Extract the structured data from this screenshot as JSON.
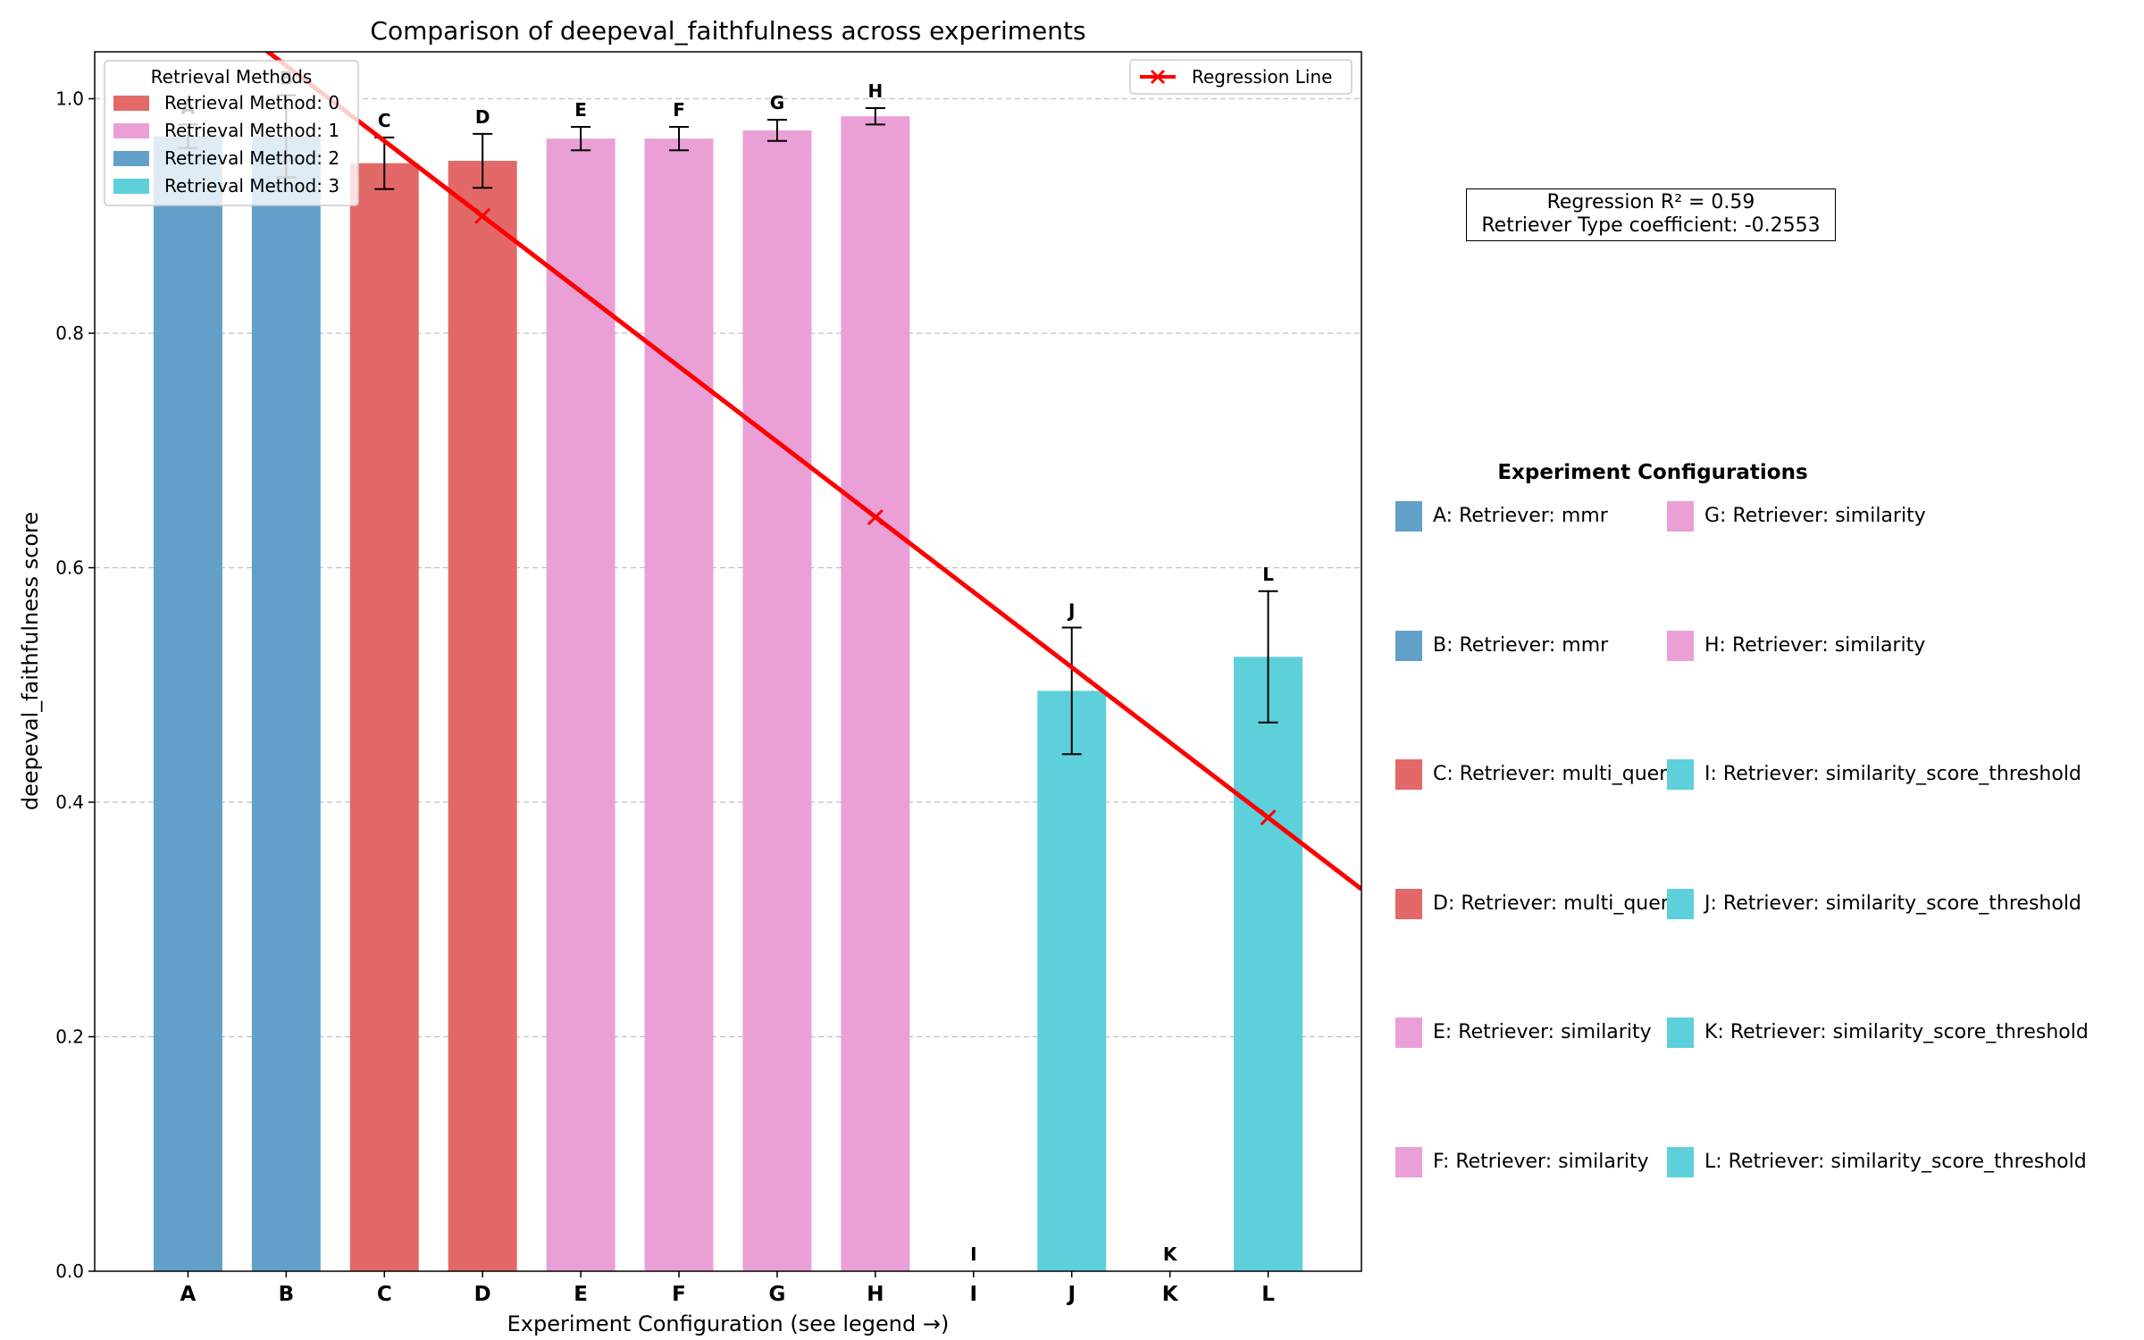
{
  "chart_data": {
    "type": "bar",
    "title": "Comparison of deepeval_faithfulness across experiments",
    "xlabel": "Experiment Configuration (see legend →)",
    "ylabel": "deepeval_faithfulness score",
    "ylim": [
      0,
      1.04
    ],
    "xlim": [
      -0.95,
      11.95
    ],
    "grid": "y-dashed",
    "yticks": [
      0.0,
      0.2,
      0.4,
      0.6,
      0.8,
      1.0
    ],
    "yticklabels": [
      "0.0",
      "0.2",
      "0.4",
      "0.6",
      "0.8",
      "1.0"
    ],
    "categories": [
      "A",
      "B",
      "C",
      "D",
      "E",
      "F",
      "G",
      "H",
      "I",
      "J",
      "K",
      "L"
    ],
    "values": [
      0.968,
      0.968,
      0.945,
      0.947,
      0.966,
      0.966,
      0.973,
      0.985,
      0.0,
      0.495,
      0.0,
      0.524
    ],
    "errors": [
      0.01,
      0.035,
      0.022,
      0.023,
      0.01,
      0.01,
      0.009,
      0.007,
      null,
      0.054,
      null,
      0.056
    ],
    "methods": [
      2,
      2,
      0,
      0,
      1,
      1,
      1,
      1,
      3,
      3,
      3,
      3
    ],
    "method_colors": [
      "#e36868",
      "#eb9fd7",
      "#62a0ca",
      "#5ed0dc"
    ],
    "method_legend": {
      "title": "Retrieval Methods",
      "placement": "upper-left",
      "entries": [
        "Retrieval Method: 0",
        "Retrieval Method: 1",
        "Retrieval Method: 2",
        "Retrieval Method: 3"
      ]
    },
    "regression": {
      "label": "Regression Line",
      "color": "#ff0000",
      "placement": "upper-right",
      "points": [
        [
          3,
          0.9
        ],
        [
          7,
          0.643
        ],
        [
          11,
          0.387
        ]
      ],
      "line_x": [
        -0.95,
        11.95
      ]
    },
    "stats": {
      "r2_text": "Regression R² = 0.59",
      "coef_text": "Retriever Type coefficient: -0.2553"
    },
    "config_legend": {
      "title": "Experiment Configurations",
      "items": [
        "A: Retriever: mmr",
        "B: Retriever: mmr",
        "C: Retriever: multi_query",
        "D: Retriever: multi_query",
        "E: Retriever: similarity",
        "F: Retriever: similarity",
        "G: Retriever: similarity",
        "H: Retriever: similarity",
        "I: Retriever: similarity_score_threshold",
        "J: Retriever: similarity_score_threshold",
        "K: Retriever: similarity_score_threshold",
        "L: Retriever: similarity_score_threshold"
      ]
    }
  }
}
